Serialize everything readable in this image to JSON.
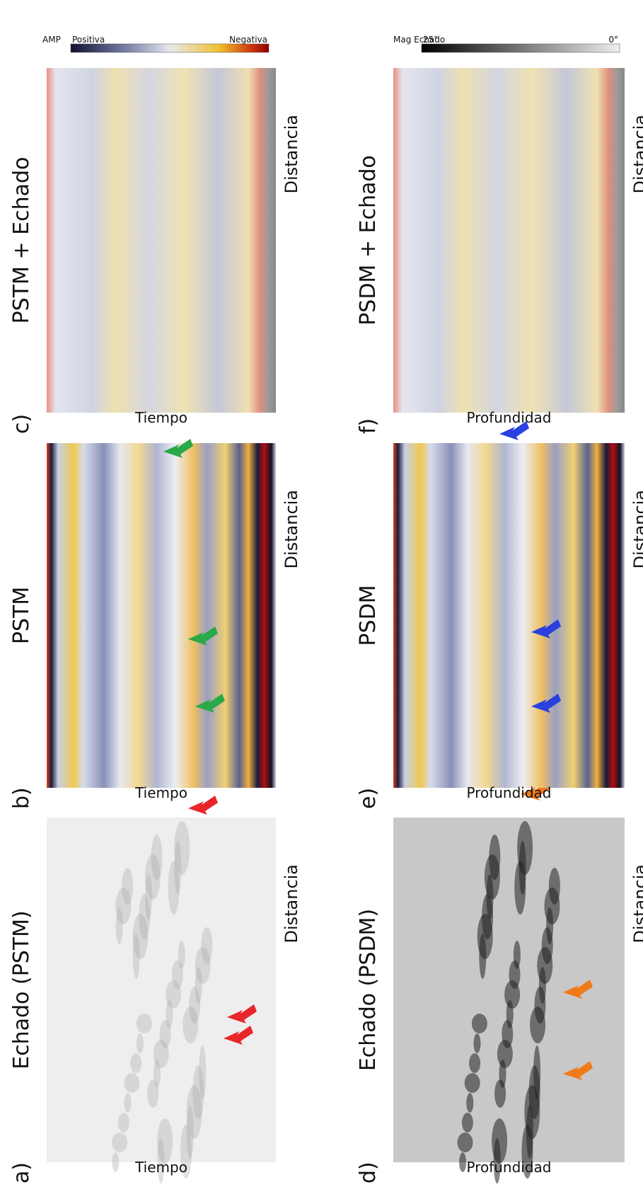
{
  "panels": [
    {
      "label": "a)",
      "title": "Echado (PSTM)",
      "x_label": "Distancia",
      "y_label": "Tiempo"
    },
    {
      "label": "b)",
      "title": "PSTM",
      "x_label": "Distancia",
      "y_label": "Tiempo"
    },
    {
      "label": "c)",
      "title": "PSTM + Echado",
      "x_label": "Distancia",
      "y_label": "Tiempo"
    },
    {
      "label": "d)",
      "title": "Echado (PSDM)",
      "x_label": "Distancia",
      "y_label": "Profundidad"
    },
    {
      "label": "e)",
      "title": "PSDM",
      "x_label": "Distancia",
      "y_label": "Profundidad"
    },
    {
      "label": "f)",
      "title": "PSDM + Echado",
      "x_label": "Distancia",
      "y_label": "Profundidad"
    }
  ],
  "colorbars": [
    {
      "title": "AMP",
      "low_label": "Positiva",
      "high_label": "Negativa"
    },
    {
      "title": "Mag Echado",
      "low_label": "25°",
      "high_label": "0°"
    }
  ]
}
